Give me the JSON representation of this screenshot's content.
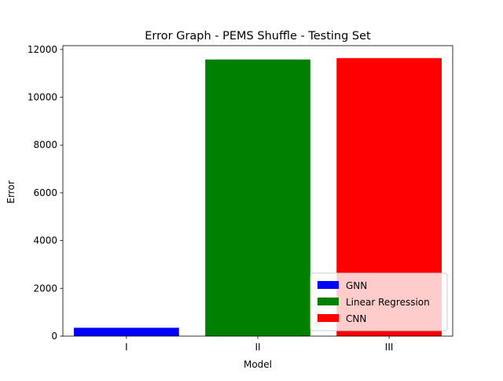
{
  "chart_data": {
    "type": "bar",
    "title": "Error Graph - PEMS Shuffle - Testing Set",
    "xlabel": "Model",
    "ylabel": "Error",
    "categories": [
      "I",
      "II",
      "III"
    ],
    "values": [
      350,
      11580,
      11640
    ],
    "colors": [
      "#0000ff",
      "#008000",
      "#ff0000"
    ],
    "ylim": [
      0,
      12160
    ],
    "yticks": [
      0,
      2000,
      4000,
      6000,
      8000,
      10000,
      12000
    ],
    "ytick_labels": [
      "0",
      "2000",
      "4000",
      "6000",
      "8000",
      "10000",
      "12000"
    ],
    "grid": false,
    "legend": {
      "placement": "lower-right",
      "entries": [
        {
          "label": "GNN",
          "color": "#0000ff"
        },
        {
          "label": "Linear Regression",
          "color": "#008000"
        },
        {
          "label": "CNN",
          "color": "#ff0000"
        }
      ]
    }
  }
}
